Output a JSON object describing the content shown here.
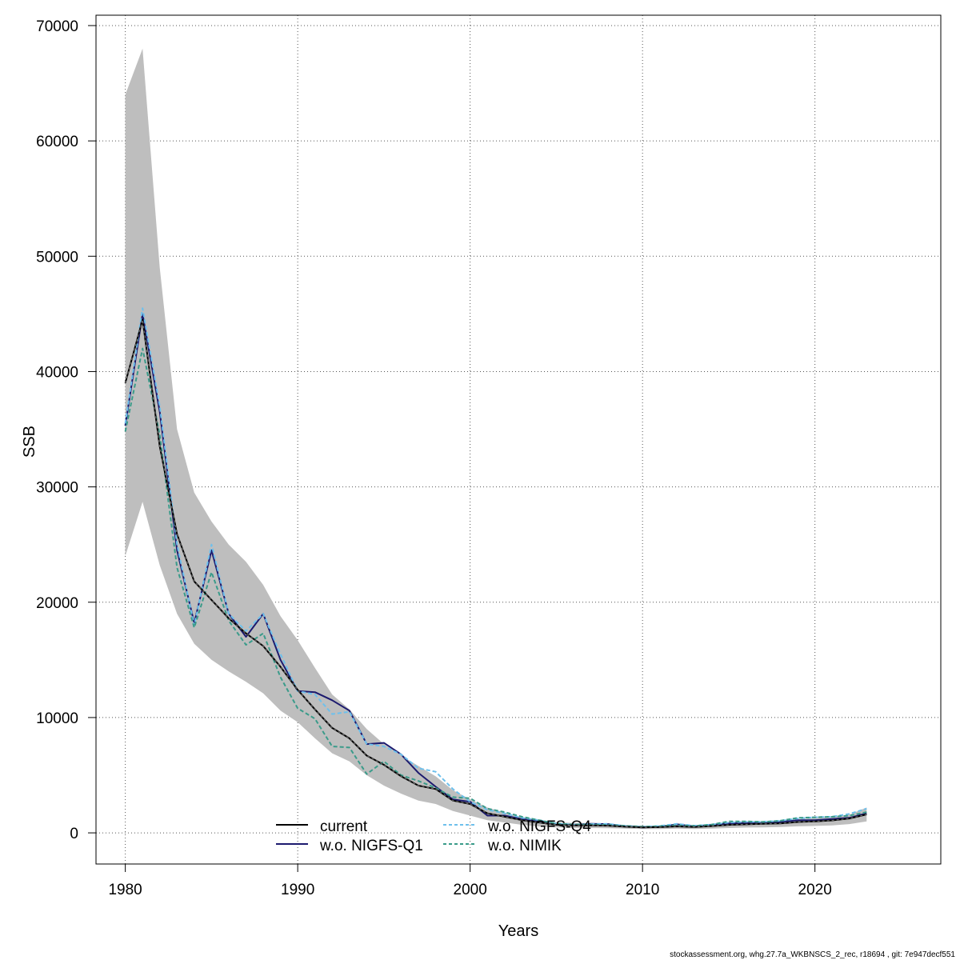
{
  "chart_data": {
    "type": "line",
    "xlabel": "Years",
    "ylabel": "SSB",
    "xlim": [
      1978.3,
      2027.3
    ],
    "ylim": [
      -2700,
      70900
    ],
    "xticks": [
      1980,
      1990,
      2000,
      2010,
      2020
    ],
    "yticks": [
      0,
      10000,
      20000,
      30000,
      40000,
      50000,
      60000,
      70000
    ],
    "grid": true,
    "legend_position": "bottom-center",
    "footer": "stockassessment.org, whg.27.7a_WKBNSCS_2_rec, r18694 , git: 7e947decf551",
    "x": [
      1980,
      1981,
      1982,
      1983,
      1984,
      1985,
      1986,
      1987,
      1988,
      1989,
      1990,
      1991,
      1992,
      1993,
      1994,
      1995,
      1996,
      1997,
      1998,
      1999,
      2000,
      2001,
      2002,
      2003,
      2004,
      2005,
      2006,
      2007,
      2008,
      2009,
      2010,
      2011,
      2012,
      2013,
      2014,
      2015,
      2016,
      2017,
      2018,
      2019,
      2020,
      2021,
      2022,
      2023
    ],
    "confidence_band": {
      "color": "#bebebe",
      "lower": [
        24000,
        28700,
        23200,
        19000,
        16400,
        15000,
        14000,
        13100,
        12100,
        10600,
        9600,
        8200,
        6900,
        6200,
        5000,
        4100,
        3400,
        2800,
        2500,
        1900,
        1500,
        1100,
        900,
        700,
        550,
        470,
        430,
        420,
        410,
        370,
        330,
        330,
        370,
        330,
        370,
        420,
        460,
        480,
        510,
        570,
        600,
        650,
        760,
        1000
      ],
      "upper": [
        64000,
        68000,
        49000,
        35000,
        29500,
        27000,
        25000,
        23500,
        21500,
        18800,
        16700,
        14300,
        12000,
        10700,
        9000,
        7700,
        6700,
        5800,
        4900,
        3700,
        2900,
        2200,
        1750,
        1350,
        1100,
        930,
        860,
        860,
        810,
        680,
        630,
        630,
        730,
        640,
        780,
        900,
        960,
        1000,
        1070,
        1180,
        1280,
        1380,
        1590,
        2200
      ]
    },
    "series": [
      {
        "name": "current",
        "color": "#000000",
        "dashed": false,
        "values": [
          39000,
          44500,
          33500,
          25900,
          21800,
          20200,
          18600,
          17300,
          16200,
          14400,
          12400,
          10700,
          9100,
          8200,
          6700,
          5900,
          4900,
          4100,
          3800,
          2800,
          2500,
          1700,
          1400,
          1100,
          900,
          700,
          650,
          650,
          620,
          530,
          480,
          500,
          560,
          510,
          590,
          690,
          740,
          780,
          820,
          940,
          1000,
          1080,
          1250,
          1600
        ]
      },
      {
        "name": "w.o. NIGFS-Q1",
        "color": "#1c1a6e",
        "dashed": false,
        "values": [
          35300,
          45000,
          36500,
          24500,
          18200,
          24500,
          19000,
          17000,
          19000,
          15000,
          12300,
          12200,
          11500,
          10600,
          7700,
          7800,
          6800,
          5200,
          4000,
          2900,
          2700,
          1500,
          1500,
          1200,
          1000,
          720,
          680,
          780,
          760,
          560,
          480,
          530,
          740,
          560,
          690,
          820,
          860,
          820,
          950,
          1100,
          1100,
          1200,
          1300,
          1700
        ]
      },
      {
        "name": "w.o. NIGFS-Q4",
        "color": "#6ec0ec",
        "dashed": true,
        "values": [
          35500,
          45500,
          37000,
          25000,
          18000,
          25000,
          19000,
          17500,
          19000,
          15500,
          12300,
          12000,
          10300,
          10500,
          7700,
          7500,
          6800,
          5600,
          5300,
          3800,
          2700,
          2000,
          1700,
          1300,
          1100,
          800,
          720,
          760,
          780,
          600,
          530,
          600,
          780,
          620,
          720,
          900,
          960,
          960,
          1050,
          1250,
          1350,
          1400,
          1650,
          2100
        ]
      },
      {
        "name": "w.o. NIMIK",
        "color": "#3a9b8a",
        "dashed": true,
        "values": [
          34800,
          42000,
          34500,
          23000,
          17800,
          22600,
          18400,
          16300,
          17300,
          13500,
          10800,
          9900,
          7500,
          7400,
          5100,
          6200,
          5000,
          4500,
          3900,
          3100,
          3000,
          2100,
          1800,
          1400,
          1100,
          800,
          720,
          720,
          690,
          600,
          530,
          580,
          660,
          600,
          720,
          1000,
          1000,
          950,
          1050,
          1300,
          1350,
          1400,
          1500,
          1800
        ]
      }
    ]
  }
}
